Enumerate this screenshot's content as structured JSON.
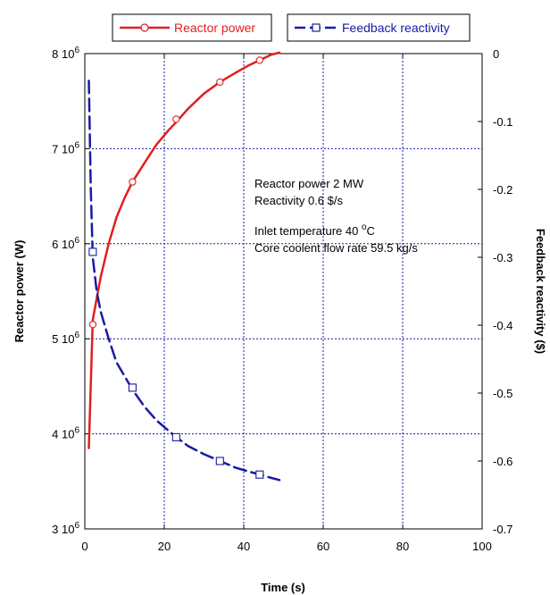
{
  "chart_data": {
    "type": "line",
    "xlabel": "Time (s)",
    "ylabel_left": "Reactor power (W)",
    "ylabel_right": "Feedback reactivity ($)",
    "xlim": [
      0,
      100
    ],
    "ylim_left": [
      3000000,
      8000000
    ],
    "ylim_right": [
      -0.7,
      0
    ],
    "grid": true,
    "legend_placement": "top",
    "x_ticks": [
      0,
      20,
      40,
      60,
      80,
      100
    ],
    "x_tick_labels": [
      "0",
      "20",
      "40",
      "60",
      "80",
      "100"
    ],
    "y_left_ticks": [
      3000000,
      4000000,
      5000000,
      6000000,
      7000000,
      8000000
    ],
    "y_left_tick_mantissa": [
      "3",
      "4",
      "5",
      "6",
      "7",
      "8"
    ],
    "y_left_tick_base": "10",
    "y_left_tick_exp": "6",
    "y_right_ticks": [
      0,
      -0.1,
      -0.2,
      -0.3,
      -0.4,
      -0.5,
      -0.6,
      -0.7
    ],
    "y_right_tick_labels": [
      "0",
      "-0.1",
      "-0.2",
      "-0.3",
      "-0.4",
      "-0.5",
      "-0.6",
      "-0.7"
    ],
    "series": [
      {
        "name": "Reactor power",
        "axis": "left",
        "color": "#e02020",
        "marker": "circle",
        "line_style": "solid",
        "x": [
          1,
          2,
          4,
          6,
          8,
          10,
          12,
          15,
          18,
          21,
          23,
          26,
          30,
          34,
          38,
          41,
          44,
          47,
          49
        ],
        "y": [
          3850000,
          5200000,
          5650000,
          6000000,
          6280000,
          6480000,
          6650000,
          6850000,
          7040000,
          7190000,
          7280000,
          7420000,
          7580000,
          7700000,
          7800000,
          7870000,
          7930000,
          7990000,
          8010000
        ],
        "markers_x": [
          2,
          12,
          23,
          34,
          44
        ],
        "markers_y": [
          5150000,
          6650000,
          7310000,
          7700000,
          7930000
        ]
      },
      {
        "name": "Feedback reactivity",
        "axis": "right",
        "color": "#1a1aa6",
        "marker": "square",
        "line_style": "dashed",
        "x": [
          1,
          1.5,
          2,
          3,
          4,
          6,
          8,
          10,
          12,
          15,
          18,
          21,
          23,
          26,
          30,
          34,
          38,
          41,
          44,
          47,
          49
        ],
        "y": [
          -0.04,
          -0.2,
          -0.3,
          -0.35,
          -0.38,
          -0.42,
          -0.455,
          -0.475,
          -0.495,
          -0.52,
          -0.54,
          -0.555,
          -0.565,
          -0.578,
          -0.59,
          -0.6,
          -0.61,
          -0.615,
          -0.62,
          -0.625,
          -0.628
        ],
        "markers_x": [
          2,
          12,
          23,
          34,
          44
        ],
        "markers_y": [
          -0.292,
          -0.492,
          -0.565,
          -0.6,
          -0.62
        ]
      }
    ],
    "annotations": {
      "line1": "Reactor power 2 MW",
      "line2": "Reactivity 0.6 $/s",
      "line3_prefix": "Inlet temperature 40 ",
      "line3_sup": "o",
      "line3_suffix": "C",
      "line4": "Core coolent flow rate 59.5 kg/s"
    }
  }
}
